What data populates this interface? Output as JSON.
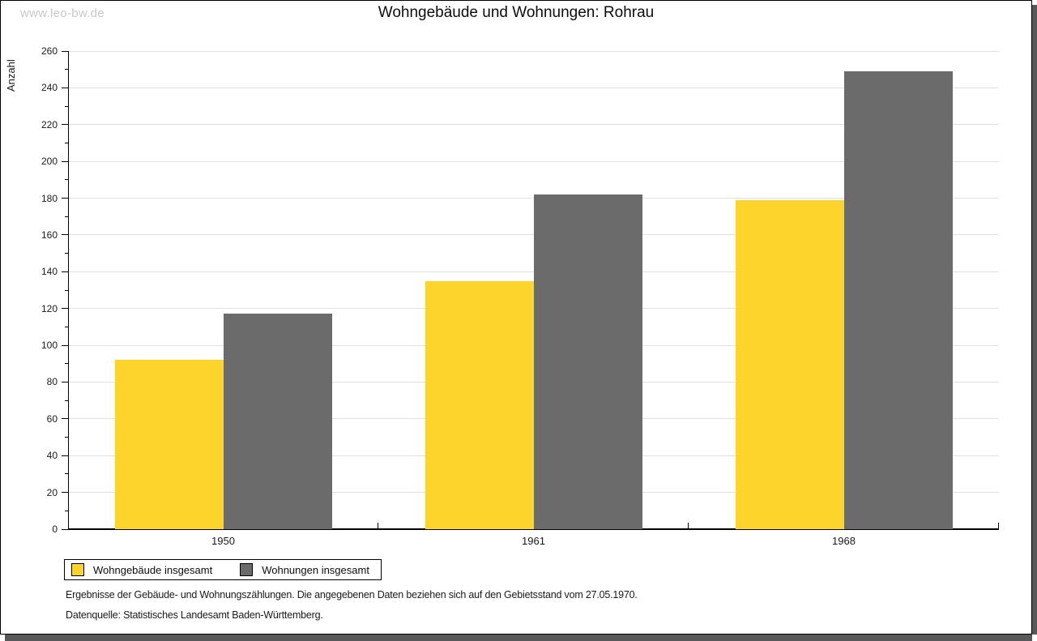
{
  "watermark": "www.leo-bw.de",
  "chart_data": {
    "type": "bar",
    "title": "Wohngebäude und Wohnungen: Rohrau",
    "xlabel": "",
    "ylabel": "Anzahl",
    "categories": [
      "1950",
      "1961",
      "1968"
    ],
    "series": [
      {
        "name": "Wohngebäude insgesamt",
        "color": "#fcd42c",
        "values": [
          92,
          135,
          179
        ]
      },
      {
        "name": "Wohnungen insgesamt",
        "color": "#6b6b6b",
        "values": [
          117,
          182,
          249
        ]
      }
    ],
    "ylim": [
      0,
      260
    ],
    "ytick_step": 20,
    "yminor_step": 10,
    "grid": "horizontal-major-only",
    "legend_position": "bottom-left"
  },
  "footnotes": {
    "line1": "Ergebnisse der Gebäude- und Wohnungszählungen. Die angegebenen Daten beziehen sich auf den Gebietsstand vom 27.05.1970.",
    "line2": "Datenquelle: Statistisches Landesamt Baden-Württemberg."
  },
  "colors": {
    "bar_yellow": "#fcd42c",
    "bar_gray": "#6b6b6b",
    "gridline": "#e0e0e0",
    "watermark_text": "#c8c8c8",
    "shadow": "#58585a",
    "axis": "#000000"
  }
}
